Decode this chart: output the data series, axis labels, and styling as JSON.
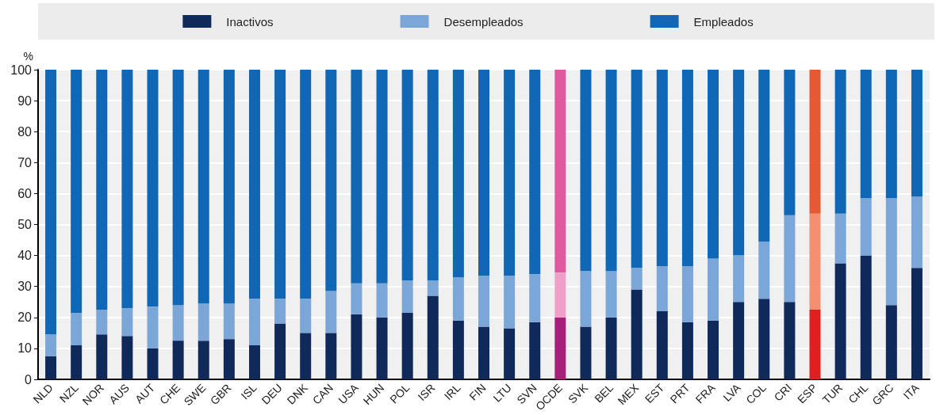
{
  "chart_data": {
    "type": "bar",
    "stacked": true,
    "ylabel": "%",
    "categories": [
      "NLD",
      "NZL",
      "NOR",
      "AUS",
      "AUT",
      "CHE",
      "SWE",
      "GBR",
      "ISL",
      "DEU",
      "DNK",
      "CAN",
      "USA",
      "HUN",
      "POL",
      "ISR",
      "IRL",
      "FIN",
      "LTU",
      "SVN",
      "OCDE",
      "SVK",
      "BEL",
      "MEX",
      "EST",
      "PRT",
      "FRA",
      "LVA",
      "COL",
      "CRI",
      "ESP",
      "TUR",
      "CHL",
      "GRC",
      "ITA"
    ],
    "series": [
      {
        "name": "Inactivos",
        "color": "#0f2a5a",
        "colors": [
          "#0f2a5a",
          "#0f2a5a",
          "#0f2a5a",
          "#0f2a5a",
          "#0f2a5a",
          "#0f2a5a",
          "#0f2a5a",
          "#0f2a5a",
          "#0f2a5a",
          "#0f2a5a",
          "#0f2a5a",
          "#0f2a5a",
          "#0f2a5a",
          "#0f2a5a",
          "#0f2a5a",
          "#0f2a5a",
          "#0f2a5a",
          "#0f2a5a",
          "#0f2a5a",
          "#0f2a5a",
          "#a81f7a",
          "#0f2a5a",
          "#0f2a5a",
          "#0f2a5a",
          "#0f2a5a",
          "#0f2a5a",
          "#0f2a5a",
          "#0f2a5a",
          "#0f2a5a",
          "#0f2a5a",
          "#e02020",
          "#0f2a5a",
          "#0f2a5a",
          "#0f2a5a",
          "#0f2a5a"
        ],
        "values": [
          7.5,
          11,
          14.5,
          14,
          10,
          12.5,
          12.5,
          13,
          11,
          18,
          15,
          15,
          21,
          20,
          21.5,
          27,
          19,
          17,
          16.5,
          18.5,
          20,
          17,
          20,
          29,
          22,
          18.5,
          19,
          25,
          26,
          25,
          22.5,
          37.5,
          40,
          24,
          36
        ]
      },
      {
        "name": "Desempleados",
        "color": "#7aa6d8",
        "colors": [
          "#7aa6d8",
          "#7aa6d8",
          "#7aa6d8",
          "#7aa6d8",
          "#7aa6d8",
          "#7aa6d8",
          "#7aa6d8",
          "#7aa6d8",
          "#7aa6d8",
          "#7aa6d8",
          "#7aa6d8",
          "#7aa6d8",
          "#7aa6d8",
          "#7aa6d8",
          "#7aa6d8",
          "#7aa6d8",
          "#7aa6d8",
          "#7aa6d8",
          "#7aa6d8",
          "#7aa6d8",
          "#f0a0c8",
          "#7aa6d8",
          "#7aa6d8",
          "#7aa6d8",
          "#7aa6d8",
          "#7aa6d8",
          "#7aa6d8",
          "#7aa6d8",
          "#7aa6d8",
          "#7aa6d8",
          "#f39070",
          "#7aa6d8",
          "#7aa6d8",
          "#7aa6d8",
          "#7aa6d8"
        ],
        "values": [
          7,
          10.5,
          8,
          9,
          13.5,
          11.5,
          12,
          11.5,
          15,
          8,
          11,
          13.5,
          10,
          11,
          10.5,
          5,
          14,
          16.5,
          17,
          15.5,
          14.5,
          18,
          15,
          7,
          14.5,
          18,
          20,
          15,
          18.5,
          28,
          31,
          16,
          18.5,
          34.5,
          23
        ]
      },
      {
        "name": "Empleados",
        "color": "#0f67b5",
        "colors": [
          "#0f67b5",
          "#0f67b5",
          "#0f67b5",
          "#0f67b5",
          "#0f67b5",
          "#0f67b5",
          "#0f67b5",
          "#0f67b5",
          "#0f67b5",
          "#0f67b5",
          "#0f67b5",
          "#0f67b5",
          "#0f67b5",
          "#0f67b5",
          "#0f67b5",
          "#0f67b5",
          "#0f67b5",
          "#0f67b5",
          "#0f67b5",
          "#0f67b5",
          "#e05aa0",
          "#0f67b5",
          "#0f67b5",
          "#0f67b5",
          "#0f67b5",
          "#0f67b5",
          "#0f67b5",
          "#0f67b5",
          "#0f67b5",
          "#0f67b5",
          "#e55a35",
          "#0f67b5",
          "#0f67b5",
          "#0f67b5",
          "#0f67b5"
        ],
        "values": [
          85.5,
          78.5,
          77.5,
          77,
          76.5,
          76,
          75.5,
          75.5,
          74,
          74,
          74,
          71.5,
          69,
          69,
          68,
          68,
          67,
          66.5,
          66.5,
          66,
          65.5,
          65,
          65,
          64,
          63.5,
          63.5,
          61,
          60,
          55.5,
          47,
          46.5,
          46.5,
          41.5,
          41.5,
          41
        ]
      }
    ],
    "ylim": [
      0,
      100
    ],
    "yticks": [
      0,
      10,
      20,
      30,
      40,
      50,
      60,
      70,
      80,
      90,
      100
    ],
    "grid": "y",
    "legend": "top"
  }
}
